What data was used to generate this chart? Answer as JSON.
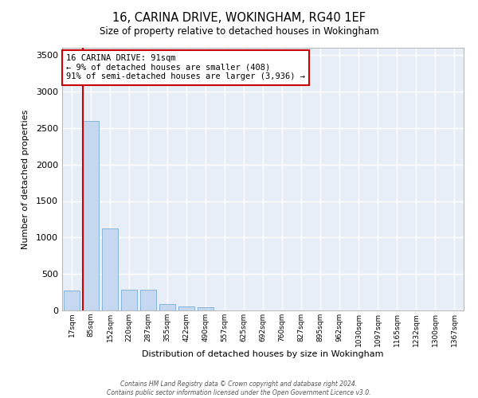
{
  "title": "16, CARINA DRIVE, WOKINGHAM, RG40 1EF",
  "subtitle": "Size of property relative to detached houses in Wokingham",
  "xlabel": "Distribution of detached houses by size in Wokingham",
  "ylabel": "Number of detached properties",
  "bar_color": "#c5d8f0",
  "bar_edge_color": "#7aadd4",
  "background_color": "#e8eef8",
  "grid_color": "#ffffff",
  "categories": [
    "17sqm",
    "85sqm",
    "152sqm",
    "220sqm",
    "287sqm",
    "355sqm",
    "422sqm",
    "490sqm",
    "557sqm",
    "625sqm",
    "692sqm",
    "760sqm",
    "827sqm",
    "895sqm",
    "962sqm",
    "1030sqm",
    "1097sqm",
    "1165sqm",
    "1232sqm",
    "1300sqm",
    "1367sqm"
  ],
  "values": [
    270,
    2600,
    1120,
    285,
    285,
    90,
    55,
    40,
    0,
    0,
    0,
    0,
    0,
    0,
    0,
    0,
    0,
    0,
    0,
    0,
    0
  ],
  "property_line_color": "#cc0000",
  "annotation_text": "16 CARINA DRIVE: 91sqm\n← 9% of detached houses are smaller (408)\n91% of semi-detached houses are larger (3,936) →",
  "annotation_box_color": "#ffffff",
  "annotation_box_edge": "#cc0000",
  "ylim": [
    0,
    3600
  ],
  "yticks": [
    0,
    500,
    1000,
    1500,
    2000,
    2500,
    3000,
    3500
  ],
  "title_fontsize": 10.5,
  "footer1": "Contains HM Land Registry data © Crown copyright and database right 2024.",
  "footer2": "Contains public sector information licensed under the Open Government Licence v3.0."
}
